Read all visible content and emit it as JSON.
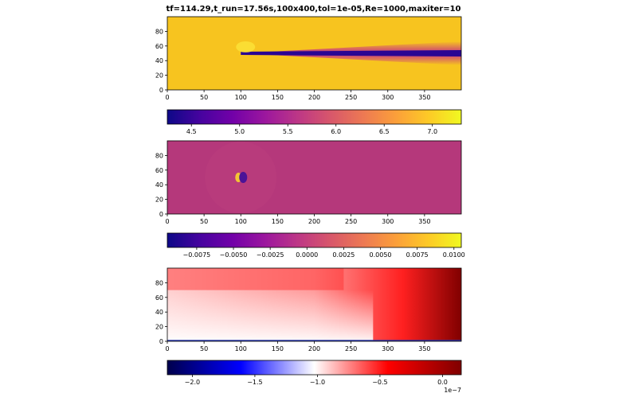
{
  "figure": {
    "title": "tf=114.29,t_run=17.56s,100x400,tol=1e-05,Re=1000,maxiter=10"
  },
  "chart_data": [
    {
      "type": "heatmap",
      "title": "",
      "xlabel": "",
      "ylabel": "",
      "xlim": [
        0,
        400
      ],
      "ylim": [
        0,
        100
      ],
      "xticks": [
        0,
        50,
        100,
        150,
        200,
        250,
        300,
        350
      ],
      "yticks": [
        0,
        20,
        40,
        60,
        80
      ],
      "colormap": "plasma",
      "colorbar": {
        "min": 4.25,
        "max": 7.3,
        "ticks": [
          4.5,
          5.0,
          5.5,
          6.0,
          6.5,
          7.0
        ],
        "tick_labels": [
          "4.5",
          "5.0",
          "5.5",
          "6.0",
          "6.5",
          "7.0"
        ]
      },
      "features": {
        "background_value": 7.0,
        "wake_min": 4.3,
        "wake_start_x": 100,
        "wake_center_y": 50
      }
    },
    {
      "type": "heatmap",
      "title": "",
      "xlabel": "",
      "ylabel": "",
      "xlim": [
        0,
        400
      ],
      "ylim": [
        0,
        100
      ],
      "xticks": [
        0,
        50,
        100,
        150,
        200,
        250,
        300,
        350
      ],
      "yticks": [
        0,
        20,
        40,
        60,
        80
      ],
      "colormap": "plasma",
      "colorbar": {
        "min": -0.0095,
        "max": 0.0105,
        "ticks": [
          -0.0075,
          -0.005,
          -0.0025,
          0.0,
          0.0025,
          0.005,
          0.0075,
          0.01
        ],
        "tick_labels": [
          "−0.0075",
          "−0.0050",
          "−0.0025",
          "0.0000",
          "0.0025",
          "0.0050",
          "0.0075",
          "0.0100"
        ]
      },
      "features": {
        "background_value": 0.0,
        "dipole_x": 100,
        "dipole_y": 50
      }
    },
    {
      "type": "heatmap",
      "title": "",
      "xlabel": "",
      "ylabel": "",
      "xlim": [
        0,
        400
      ],
      "ylim": [
        0,
        100
      ],
      "xticks": [
        0,
        50,
        100,
        150,
        200,
        250,
        300,
        350
      ],
      "yticks": [
        0,
        20,
        40,
        60,
        80
      ],
      "colormap": "seismic",
      "colorbar": {
        "min": -2.2,
        "max": 0.15,
        "offset_label": "1e−7",
        "ticks": [
          -2.0,
          -1.5,
          -1.0,
          -0.5,
          0.0
        ],
        "tick_labels": [
          "−2.0",
          "−1.5",
          "−1.0",
          "−0.5",
          "0.0"
        ]
      },
      "features": {
        "description_values": "white near bottom-left (~ -1.0), red across top, dark red at right (~ 0.0)"
      }
    }
  ]
}
